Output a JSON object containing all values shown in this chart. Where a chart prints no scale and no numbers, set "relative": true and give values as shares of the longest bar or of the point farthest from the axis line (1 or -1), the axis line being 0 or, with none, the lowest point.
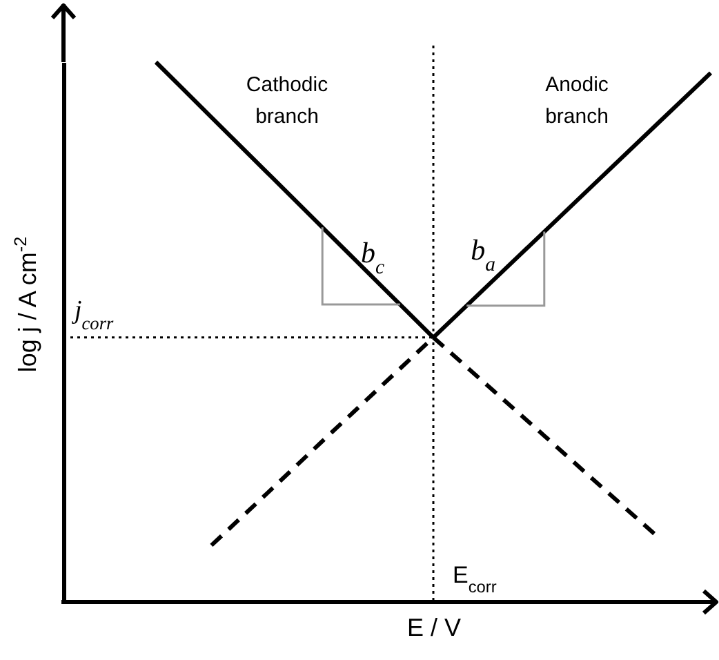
{
  "chart_data": {
    "type": "line",
    "relative": true,
    "xlabel": "E / V",
    "ylabel": "log j / A cm$^{-2}$",
    "grid": false,
    "categories": [
      null,
      null,
      null,
      null,
      null,
      null,
      null,
      null,
      null,
      null,
      null
    ],
    "series": [
      {
        "color": "#000000",
        "line_style": "solid",
        "values": [
          1,
          0.898,
          0.796,
          0.694,
          0.592,
          0.49,
          null,
          null,
          null,
          null,
          null
        ]
      },
      {
        "color": "#000000",
        "line_style": "dashed",
        "values": [
          null,
          null,
          null,
          null,
          null,
          0.49,
          0.399,
          0.308,
          0.216,
          0.125,
          null
        ]
      },
      {
        "color": "#000000",
        "line_style": "solid",
        "values": [
          null,
          null,
          null,
          null,
          null,
          0.49,
          0.588,
          0.686,
          0.784,
          0.882,
          0.98
        ]
      },
      {
        "color": "#000000",
        "line_style": "dashed",
        "values": [
          null,
          0.105,
          0.201,
          0.298,
          0.394,
          0.49,
          null,
          null,
          null,
          null,
          null
        ]
      }
    ],
    "ref_lines": [
      {
        "axis": "x",
        "label": "E$_{corr}$",
        "color": "#000000",
        "line_style": "dotted"
      },
      {
        "axis": "y",
        "value": 0.49,
        "label": "j$_{corr}$",
        "color": "#000000",
        "line_style": "dotted"
      }
    ],
    "annotations": [
      "Cathodic branch",
      "Anodic branch",
      "b$_{c}$",
      "b$_{a}$"
    ]
  }
}
